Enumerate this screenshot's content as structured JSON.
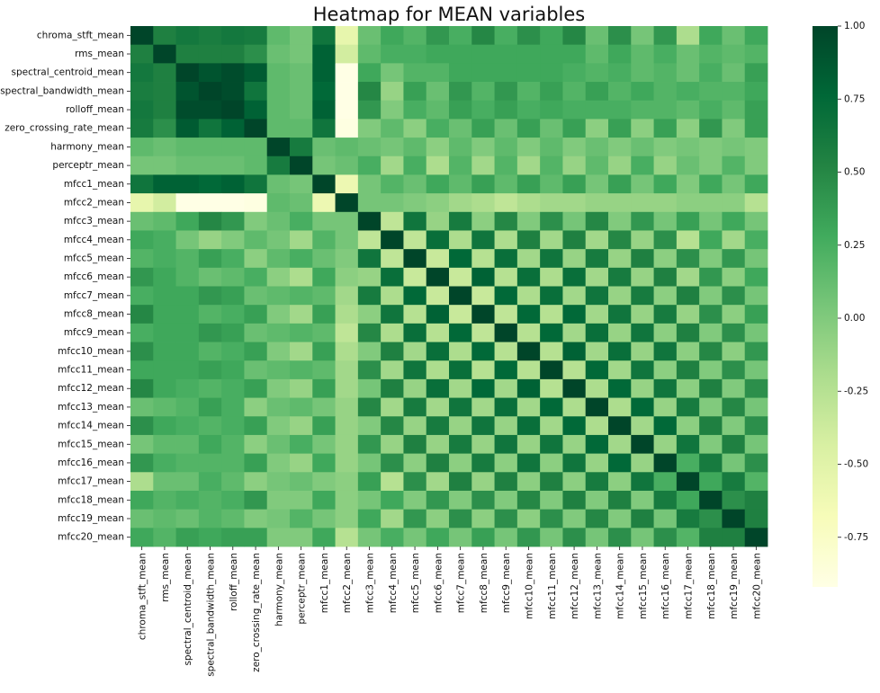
{
  "chart_data": {
    "type": "heatmap",
    "title": "Heatmap for MEAN variables",
    "variables": [
      "chroma_stft_mean",
      "rms_mean",
      "spectral_centroid_mean",
      "spectral_bandwidth_mean",
      "rolloff_mean",
      "zero_crossing_rate_mean",
      "harmony_mean",
      "perceptr_mean",
      "mfcc1_mean",
      "mfcc2_mean",
      "mfcc3_mean",
      "mfcc4_mean",
      "mfcc5_mean",
      "mfcc6_mean",
      "mfcc7_mean",
      "mfcc8_mean",
      "mfcc9_mean",
      "mfcc10_mean",
      "mfcc11_mean",
      "mfcc12_mean",
      "mfcc13_mean",
      "mfcc14_mean",
      "mfcc15_mean",
      "mfcc16_mean",
      "mfcc17_mean",
      "mfcc18_mean",
      "mfcc19_mean",
      "mfcc20_mean"
    ],
    "matrix": [
      [
        1.0,
        0.55,
        0.62,
        0.58,
        0.62,
        0.6,
        0.15,
        0.05,
        0.65,
        -0.55,
        0.1,
        0.3,
        0.2,
        0.4,
        0.25,
        0.5,
        0.25,
        0.45,
        0.3,
        0.5,
        0.1,
        0.45,
        0.05,
        0.4,
        -0.2,
        0.3,
        0.1,
        0.3
      ],
      [
        0.55,
        1.0,
        0.55,
        0.55,
        0.55,
        0.45,
        0.1,
        0.05,
        0.8,
        -0.4,
        0.15,
        0.25,
        0.25,
        0.3,
        0.3,
        0.3,
        0.3,
        0.3,
        0.3,
        0.3,
        0.15,
        0.3,
        0.15,
        0.25,
        0.1,
        0.2,
        0.15,
        0.2
      ],
      [
        0.62,
        0.55,
        1.0,
        0.9,
        0.95,
        0.85,
        0.15,
        0.1,
        0.8,
        -0.95,
        0.3,
        0.05,
        0.2,
        0.2,
        0.3,
        0.3,
        0.3,
        0.3,
        0.3,
        0.25,
        0.2,
        0.25,
        0.15,
        0.2,
        0.1,
        0.25,
        0.1,
        0.35
      ],
      [
        0.58,
        0.55,
        0.9,
        1.0,
        0.95,
        0.65,
        0.15,
        0.1,
        0.75,
        -0.95,
        0.5,
        -0.1,
        0.35,
        0.1,
        0.4,
        0.2,
        0.4,
        0.2,
        0.35,
        0.2,
        0.35,
        0.2,
        0.3,
        0.2,
        0.25,
        0.2,
        0.2,
        0.3
      ],
      [
        0.62,
        0.55,
        0.95,
        0.95,
        1.0,
        0.8,
        0.15,
        0.1,
        0.8,
        -0.95,
        0.4,
        0.0,
        0.25,
        0.15,
        0.35,
        0.25,
        0.35,
        0.25,
        0.3,
        0.25,
        0.25,
        0.25,
        0.2,
        0.2,
        0.15,
        0.25,
        0.15,
        0.35
      ],
      [
        0.6,
        0.45,
        0.85,
        0.65,
        0.8,
        1.0,
        0.15,
        0.15,
        0.65,
        -0.9,
        0.0,
        0.15,
        -0.05,
        0.25,
        0.1,
        0.35,
        0.1,
        0.35,
        0.1,
        0.35,
        -0.05,
        0.35,
        -0.05,
        0.35,
        -0.05,
        0.4,
        0.0,
        0.35
      ],
      [
        0.15,
        0.1,
        0.15,
        0.15,
        0.15,
        0.15,
        1.0,
        0.6,
        0.1,
        0.15,
        0.1,
        0.05,
        0.15,
        -0.05,
        0.15,
        0.0,
        0.15,
        0.0,
        0.15,
        0.0,
        0.1,
        0.0,
        0.1,
        0.0,
        0.05,
        0.0,
        0.05,
        0.0
      ],
      [
        0.05,
        0.05,
        0.1,
        0.1,
        0.1,
        0.15,
        0.6,
        1.0,
        0.05,
        0.1,
        0.25,
        -0.15,
        0.25,
        -0.2,
        0.2,
        -0.15,
        0.2,
        -0.15,
        0.2,
        -0.1,
        0.15,
        -0.1,
        0.25,
        -0.1,
        0.1,
        0.0,
        0.2,
        0.0
      ],
      [
        0.65,
        0.8,
        0.8,
        0.75,
        0.8,
        0.65,
        0.1,
        0.05,
        1.0,
        -0.6,
        0.05,
        0.2,
        0.1,
        0.3,
        0.15,
        0.35,
        0.15,
        0.35,
        0.15,
        0.35,
        0.05,
        0.35,
        0.05,
        0.3,
        0.0,
        0.3,
        0.05,
        0.3
      ],
      [
        -0.55,
        -0.4,
        -0.95,
        -0.95,
        -0.95,
        -0.9,
        0.15,
        0.1,
        -0.6,
        1.0,
        0.05,
        0.05,
        0.0,
        -0.05,
        -0.15,
        -0.2,
        -0.3,
        -0.2,
        -0.15,
        -0.15,
        -0.1,
        -0.1,
        -0.1,
        -0.1,
        -0.05,
        -0.05,
        -0.05,
        -0.25
      ],
      [
        0.1,
        0.15,
        0.3,
        0.5,
        0.4,
        0.0,
        0.1,
        0.25,
        0.05,
        0.05,
        1.0,
        -0.3,
        0.65,
        -0.1,
        0.6,
        -0.05,
        0.5,
        0.0,
        0.45,
        0.05,
        0.5,
        0.0,
        0.4,
        0.05,
        0.35,
        0.05,
        0.3,
        0.05
      ],
      [
        0.3,
        0.25,
        0.05,
        -0.1,
        0.0,
        0.15,
        0.05,
        -0.15,
        0.2,
        0.05,
        -0.3,
        1.0,
        -0.3,
        0.7,
        -0.2,
        0.65,
        -0.2,
        0.55,
        -0.15,
        0.55,
        -0.15,
        0.5,
        -0.1,
        0.45,
        -0.25,
        0.3,
        -0.15,
        0.25
      ],
      [
        0.2,
        0.25,
        0.2,
        0.35,
        0.25,
        -0.05,
        0.15,
        0.25,
        0.1,
        0.0,
        0.65,
        -0.3,
        1.0,
        -0.35,
        0.75,
        -0.25,
        0.7,
        -0.15,
        0.65,
        -0.1,
        0.6,
        -0.1,
        0.55,
        -0.05,
        0.45,
        0.0,
        0.4,
        0.05
      ],
      [
        0.4,
        0.3,
        0.2,
        0.1,
        0.15,
        0.25,
        -0.05,
        -0.2,
        0.3,
        -0.05,
        -0.1,
        0.7,
        -0.35,
        1.0,
        -0.35,
        0.8,
        -0.25,
        0.7,
        -0.2,
        0.7,
        -0.15,
        0.6,
        -0.1,
        0.55,
        -0.15,
        0.4,
        -0.05,
        0.3
      ],
      [
        0.25,
        0.3,
        0.3,
        0.4,
        0.35,
        0.1,
        0.15,
        0.2,
        0.15,
        -0.15,
        0.6,
        -0.2,
        0.75,
        -0.35,
        1.0,
        -0.35,
        0.75,
        -0.2,
        0.7,
        -0.15,
        0.65,
        -0.1,
        0.6,
        -0.05,
        0.55,
        0.0,
        0.45,
        0.05
      ],
      [
        0.5,
        0.3,
        0.3,
        0.2,
        0.25,
        0.35,
        0.0,
        -0.15,
        0.35,
        -0.2,
        -0.05,
        0.65,
        -0.25,
        0.8,
        -0.35,
        1.0,
        -0.3,
        0.75,
        -0.25,
        0.75,
        -0.15,
        0.65,
        -0.1,
        0.6,
        -0.1,
        0.45,
        -0.05,
        0.35
      ],
      [
        0.25,
        0.3,
        0.3,
        0.4,
        0.35,
        0.1,
        0.15,
        0.2,
        0.15,
        -0.3,
        0.5,
        -0.2,
        0.7,
        -0.25,
        0.75,
        -0.3,
        1.0,
        -0.25,
        0.75,
        -0.15,
        0.7,
        -0.1,
        0.65,
        -0.05,
        0.55,
        0.0,
        0.45,
        0.05
      ],
      [
        0.45,
        0.3,
        0.3,
        0.2,
        0.25,
        0.35,
        0.0,
        -0.15,
        0.35,
        -0.2,
        0.0,
        0.55,
        -0.15,
        0.7,
        -0.2,
        0.75,
        -0.25,
        1.0,
        -0.25,
        0.8,
        -0.15,
        0.7,
        -0.1,
        0.65,
        -0.05,
        0.5,
        -0.05,
        0.4
      ],
      [
        0.3,
        0.3,
        0.3,
        0.35,
        0.3,
        0.1,
        0.15,
        0.2,
        0.15,
        -0.15,
        0.45,
        -0.15,
        0.65,
        -0.2,
        0.7,
        -0.25,
        0.75,
        -0.25,
        1.0,
        -0.25,
        0.75,
        -0.15,
        0.65,
        -0.05,
        0.55,
        0.0,
        0.45,
        0.05
      ],
      [
        0.5,
        0.3,
        0.25,
        0.2,
        0.25,
        0.35,
        0.0,
        -0.1,
        0.35,
        -0.15,
        0.05,
        0.55,
        -0.1,
        0.7,
        -0.15,
        0.75,
        -0.15,
        0.8,
        -0.25,
        1.0,
        -0.2,
        0.75,
        -0.1,
        0.65,
        -0.05,
        0.55,
        0.0,
        0.45
      ],
      [
        0.1,
        0.15,
        0.2,
        0.35,
        0.25,
        -0.05,
        0.1,
        0.15,
        0.05,
        -0.1,
        0.5,
        -0.15,
        0.6,
        -0.15,
        0.65,
        -0.15,
        0.7,
        -0.15,
        0.75,
        -0.2,
        1.0,
        -0.2,
        0.75,
        -0.1,
        0.6,
        0.0,
        0.5,
        0.05
      ],
      [
        0.45,
        0.3,
        0.25,
        0.2,
        0.25,
        0.35,
        0.0,
        -0.1,
        0.35,
        -0.1,
        0.0,
        0.5,
        -0.1,
        0.6,
        -0.1,
        0.65,
        -0.1,
        0.7,
        -0.15,
        0.75,
        -0.2,
        1.0,
        -0.15,
        0.75,
        -0.05,
        0.55,
        0.0,
        0.45
      ],
      [
        0.05,
        0.15,
        0.15,
        0.3,
        0.2,
        -0.05,
        0.1,
        0.25,
        0.05,
        -0.1,
        0.4,
        -0.1,
        0.55,
        -0.1,
        0.6,
        -0.1,
        0.65,
        -0.1,
        0.65,
        -0.1,
        0.75,
        -0.15,
        1.0,
        -0.1,
        0.65,
        0.0,
        0.55,
        0.05
      ],
      [
        0.4,
        0.25,
        0.2,
        0.2,
        0.2,
        0.35,
        0.0,
        -0.1,
        0.3,
        -0.1,
        0.05,
        0.45,
        -0.05,
        0.55,
        -0.05,
        0.6,
        -0.05,
        0.65,
        -0.05,
        0.65,
        -0.1,
        0.75,
        -0.1,
        1.0,
        0.25,
        0.6,
        0.05,
        0.45
      ],
      [
        -0.2,
        0.1,
        0.1,
        0.25,
        0.15,
        -0.05,
        0.05,
        0.1,
        0.0,
        -0.05,
        0.35,
        -0.25,
        0.45,
        -0.15,
        0.55,
        -0.1,
        0.55,
        -0.05,
        0.55,
        -0.05,
        0.6,
        -0.05,
        0.65,
        0.25,
        1.0,
        0.3,
        0.6,
        0.2
      ],
      [
        0.3,
        0.2,
        0.25,
        0.2,
        0.25,
        0.4,
        0.0,
        0.0,
        0.3,
        -0.05,
        0.05,
        0.3,
        0.0,
        0.4,
        0.0,
        0.45,
        0.0,
        0.5,
        0.0,
        0.55,
        0.0,
        0.55,
        0.0,
        0.6,
        0.3,
        1.0,
        0.45,
        0.55
      ],
      [
        0.1,
        0.15,
        0.1,
        0.2,
        0.15,
        0.0,
        0.05,
        0.2,
        0.05,
        -0.05,
        0.3,
        -0.15,
        0.4,
        -0.05,
        0.45,
        -0.05,
        0.45,
        -0.05,
        0.45,
        0.0,
        0.5,
        0.0,
        0.55,
        0.05,
        0.6,
        0.45,
        1.0,
        0.55
      ],
      [
        0.3,
        0.2,
        0.35,
        0.3,
        0.35,
        0.35,
        0.0,
        0.0,
        0.3,
        -0.25,
        0.05,
        0.25,
        0.05,
        0.3,
        0.05,
        0.35,
        0.05,
        0.4,
        0.05,
        0.45,
        0.05,
        0.45,
        0.05,
        0.45,
        0.2,
        0.55,
        0.55,
        1.0
      ]
    ],
    "vmin": -0.92,
    "vmax": 1.0,
    "colormap": "YlGn",
    "colorbar_ticks": [
      "1.00",
      "0.75",
      "0.50",
      "0.25",
      "0.00",
      "-0.25",
      "-0.50",
      "-0.75"
    ],
    "colorbar_tick_values": [
      1.0,
      0.75,
      0.5,
      0.25,
      0.0,
      -0.25,
      -0.5,
      -0.75
    ],
    "colormap_stops": [
      "#ffffe5",
      "#f7fcb9",
      "#d9f0a3",
      "#addd8e",
      "#78c679",
      "#41ab5d",
      "#238443",
      "#006837",
      "#004529"
    ]
  }
}
